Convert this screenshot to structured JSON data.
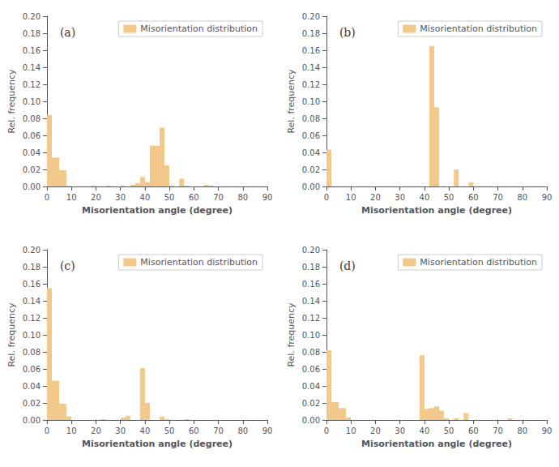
{
  "chart_data": [
    {
      "type": "histogram",
      "annotation": "(a)",
      "xlabel": "Misorientation angle (degree)",
      "ylabel": "Rel. frequency",
      "bins": [
        0,
        2,
        5,
        8,
        10,
        12,
        14,
        16,
        18,
        20,
        22,
        24,
        26,
        28,
        30,
        32,
        34,
        36,
        38,
        40,
        42,
        44,
        46,
        48,
        50,
        52,
        54,
        56,
        58,
        60,
        62,
        64,
        66,
        68,
        70,
        72,
        74,
        76,
        78,
        80,
        82,
        84,
        86,
        88,
        90
      ],
      "series": [
        {
          "name": "Misorientation distribution",
          "color": "#F2C98A",
          "values": [
            0.084,
            0.034,
            0.019,
            0.001,
            0.0,
            0.0,
            0.0,
            0.0,
            0.001,
            0.0,
            0.0,
            0.001,
            0.0,
            0.0,
            0.001,
            0.0,
            0.002,
            0.004,
            0.011,
            0.005,
            0.048,
            0.048,
            0.069,
            0.025,
            0.001,
            0.0,
            0.009,
            0.001,
            0.0,
            0.0,
            0.0,
            0.002,
            0.001,
            0.0,
            0.0,
            0.0,
            0.0,
            0.0,
            0.0,
            0.0,
            0.0,
            0.0,
            0.0,
            0.0
          ]
        }
      ],
      "xlim": [
        0,
        90
      ],
      "xticks": [
        0,
        10,
        20,
        30,
        40,
        50,
        60,
        70,
        80,
        90
      ],
      "ylim": [
        0,
        0.2
      ],
      "yticks": [
        {
          "value": 0.0,
          "label": "0.00"
        },
        {
          "value": 0.02,
          "label": "0.02"
        },
        {
          "value": 0.04,
          "label": "0.04"
        },
        {
          "value": 0.06,
          "label": "0.06"
        },
        {
          "value": 0.08,
          "label": "0.08"
        },
        {
          "value": 0.1,
          "label": "0.10"
        },
        {
          "value": 0.12,
          "label": "0.12"
        },
        {
          "value": 0.14,
          "label": "0.14"
        },
        {
          "value": 0.16,
          "label": "0.16"
        },
        {
          "value": 0.18,
          "label": "0.18"
        },
        {
          "value": 0.2,
          "label": "0.20"
        }
      ],
      "grid": false,
      "legend": "upper right"
    },
    {
      "type": "histogram",
      "annotation": "(b)",
      "xlabel": "Misorientation angle (degree)",
      "ylabel": "Rel. frequency",
      "bins": [
        0,
        2,
        5,
        8,
        10,
        12,
        14,
        16,
        18,
        20,
        22,
        24,
        26,
        28,
        30,
        32,
        34,
        36,
        38,
        40,
        42,
        44,
        46,
        48,
        50,
        52,
        54,
        56,
        58,
        60,
        62,
        64,
        66,
        68,
        70,
        72,
        74,
        76,
        78,
        80,
        82,
        84,
        86,
        88,
        90
      ],
      "series": [
        {
          "name": "Misorientation distribution",
          "color": "#F2C98A",
          "values": [
            0.043,
            0.0,
            0.0,
            0.0,
            0.0,
            0.0,
            0.0,
            0.0,
            0.0,
            0.0,
            0.0,
            0.0,
            0.0,
            0.0,
            0.0,
            0.0,
            0.0,
            0.0,
            0.0,
            0.0,
            0.165,
            0.093,
            0.0,
            0.0,
            0.0,
            0.02,
            0.0,
            0.0,
            0.005,
            0.0,
            0.0,
            0.0,
            0.0,
            0.0,
            0.0,
            0.0,
            0.0,
            0.0,
            0.0,
            0.0,
            0.0,
            0.0,
            0.0,
            0.0
          ]
        }
      ],
      "xlim": [
        0,
        90
      ],
      "xticks": [
        0,
        10,
        20,
        30,
        40,
        50,
        60,
        70,
        80,
        90
      ],
      "ylim": [
        0,
        0.2
      ],
      "yticks": [
        {
          "value": 0.0,
          "label": "0.00"
        },
        {
          "value": 0.02,
          "label": "0.02"
        },
        {
          "value": 0.04,
          "label": "0.04"
        },
        {
          "value": 0.06,
          "label": "0.06"
        },
        {
          "value": 0.08,
          "label": "0.08"
        },
        {
          "value": 0.1,
          "label": "0.10"
        },
        {
          "value": 0.12,
          "label": "0.12"
        },
        {
          "value": 0.14,
          "label": "0.14"
        },
        {
          "value": 0.16,
          "label": "0.16"
        },
        {
          "value": 0.18,
          "label": "0.18"
        },
        {
          "value": 0.2,
          "label": "0.20"
        }
      ],
      "grid": false,
      "legend": "upper right"
    },
    {
      "type": "histogram",
      "annotation": "(c)",
      "xlabel": "Misorientation angle (degree)",
      "ylabel": "Rel. frequency",
      "bins": [
        0,
        2,
        5,
        8,
        10,
        12,
        14,
        16,
        18,
        20,
        22,
        24,
        26,
        28,
        30,
        32,
        34,
        36,
        38,
        40,
        42,
        44,
        46,
        48,
        50,
        52,
        54,
        56,
        58,
        60,
        62,
        64,
        66,
        68,
        70,
        72,
        74,
        76,
        78,
        80,
        82,
        84,
        86,
        88,
        90
      ],
      "series": [
        {
          "name": "Misorientation distribution",
          "color": "#F2C98A",
          "values": [
            0.155,
            0.046,
            0.019,
            0.004,
            0.0,
            0.0,
            0.0,
            0.0,
            0.0,
            0.0,
            0.001,
            0.0,
            0.0,
            0.0,
            0.003,
            0.005,
            0.0,
            0.0,
            0.061,
            0.02,
            0.0,
            0.0,
            0.004,
            0.001,
            0.0,
            0.0,
            0.0,
            0.001,
            0.0,
            0.0,
            0.0,
            0.0,
            0.0,
            0.0,
            0.0,
            0.0,
            0.0,
            0.0,
            0.0,
            0.0,
            0.0,
            0.0,
            0.0,
            0.0
          ]
        }
      ],
      "xlim": [
        0,
        90
      ],
      "xticks": [
        0,
        10,
        20,
        30,
        40,
        50,
        60,
        70,
        80,
        90
      ],
      "ylim": [
        0,
        0.2
      ],
      "yticks": [
        {
          "value": 0.0,
          "label": "0.00"
        },
        {
          "value": 0.02,
          "label": "0.02"
        },
        {
          "value": 0.04,
          "label": "0.04"
        },
        {
          "value": 0.06,
          "label": "0.06"
        },
        {
          "value": 0.08,
          "label": "0.08"
        },
        {
          "value": 0.1,
          "label": "0.10"
        },
        {
          "value": 0.12,
          "label": "0.12"
        },
        {
          "value": 0.14,
          "label": "0.14"
        },
        {
          "value": 0.16,
          "label": "0.16"
        },
        {
          "value": 0.18,
          "label": "0.18"
        },
        {
          "value": 0.2,
          "label": "0.20"
        }
      ],
      "grid": false,
      "legend": "upper right"
    },
    {
      "type": "histogram",
      "annotation": "(d)",
      "xlabel": "Misorientation angle (degree)",
      "ylabel": "Rel. frequency",
      "bins": [
        0,
        2,
        5,
        8,
        10,
        12,
        14,
        16,
        18,
        20,
        22,
        24,
        26,
        28,
        30,
        32,
        34,
        36,
        38,
        40,
        42,
        44,
        46,
        48,
        50,
        52,
        54,
        56,
        58,
        60,
        62,
        64,
        66,
        68,
        70,
        72,
        74,
        76,
        78,
        80,
        82,
        84,
        86,
        88,
        90
      ],
      "series": [
        {
          "name": "Misorientation distribution",
          "color": "#F2C98A",
          "values": [
            0.082,
            0.021,
            0.014,
            0.003,
            0.0,
            0.0,
            0.0,
            0.0,
            0.0,
            0.0,
            0.0,
            0.0,
            0.0,
            0.0,
            0.0,
            0.0,
            0.0,
            0.0,
            0.076,
            0.013,
            0.014,
            0.016,
            0.011,
            0.002,
            0.0,
            0.002,
            0.0,
            0.008,
            0.0,
            0.0,
            0.0,
            0.0,
            0.0,
            0.0,
            0.0,
            0.0,
            0.002,
            0.0,
            0.0,
            0.0,
            0.0,
            0.0,
            0.0,
            0.0
          ]
        }
      ],
      "xlim": [
        0,
        90
      ],
      "xticks": [
        0,
        10,
        20,
        30,
        40,
        50,
        60,
        70,
        80,
        90
      ],
      "ylim": [
        0,
        0.2
      ],
      "yticks": [
        {
          "value": 0.0,
          "label": "0.00"
        },
        {
          "value": 0.02,
          "label": "0.02"
        },
        {
          "value": 0.04,
          "label": "0.04"
        },
        {
          "value": 0.06,
          "label": "0.06"
        },
        {
          "value": 0.08,
          "label": "0.08"
        },
        {
          "value": 0.1,
          "label": "0.10"
        },
        {
          "value": 0.12,
          "label": "0.12"
        },
        {
          "value": 0.14,
          "label": "0.14"
        },
        {
          "value": 0.16,
          "label": "0.16"
        },
        {
          "value": 0.18,
          "label": "0.18"
        },
        {
          "value": 0.2,
          "label": "0.20"
        }
      ],
      "grid": false,
      "legend": "upper right"
    }
  ]
}
